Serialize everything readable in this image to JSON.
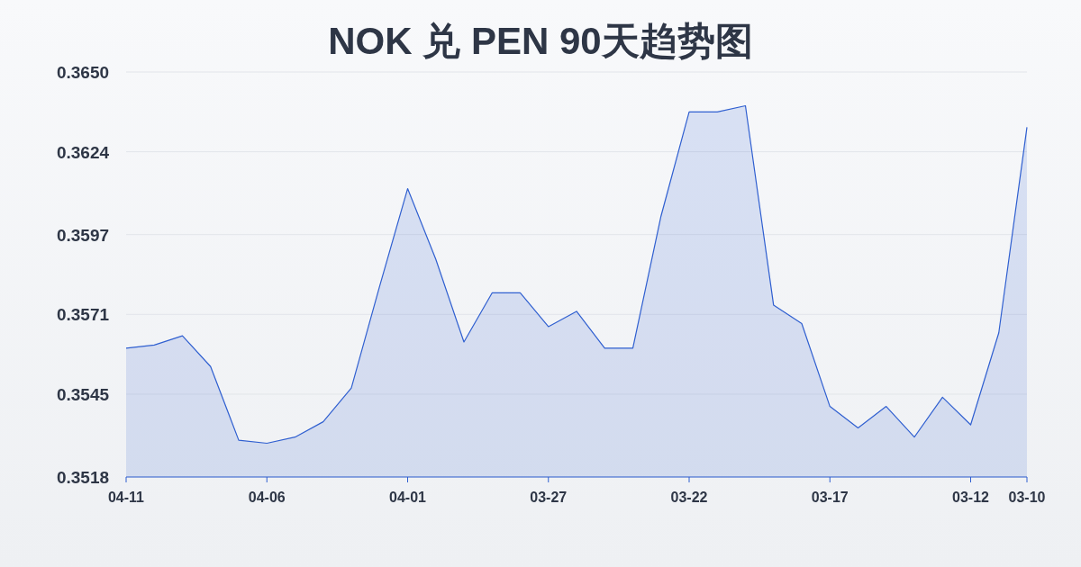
{
  "chart_data": {
    "type": "area",
    "title": "NOK 兑 PEN 90天趋势图",
    "categories": [
      "04-11",
      null,
      null,
      null,
      null,
      "04-06",
      null,
      null,
      null,
      null,
      "04-01",
      null,
      null,
      null,
      null,
      "03-27",
      null,
      null,
      null,
      null,
      "03-22",
      null,
      null,
      null,
      null,
      "03-17",
      null,
      null,
      null,
      null,
      "03-12",
      null,
      "03-10"
    ],
    "series": [
      {
        "color": "#2f5fd0",
        "values": [
          0.356,
          0.3561,
          0.3564,
          0.3554,
          0.353,
          0.3529,
          0.3531,
          0.3536,
          0.3547,
          0.358,
          0.3612,
          0.3589,
          0.3562,
          0.3578,
          0.3578,
          0.3567,
          0.3572,
          0.356,
          0.356,
          0.3603,
          0.3637,
          0.3637,
          0.3639,
          0.3574,
          0.3568,
          0.3541,
          0.3534,
          0.3541,
          0.3531,
          0.3544,
          0.3535,
          0.3565,
          0.3632
        ]
      }
    ],
    "ylim": [
      0.3518,
      0.365
    ],
    "yticks": [
      0.3518,
      0.3545,
      0.3571,
      0.3597,
      0.3624,
      {
        "value": 0.365,
        "label": "0.3650"
      }
    ],
    "grid": "y"
  }
}
